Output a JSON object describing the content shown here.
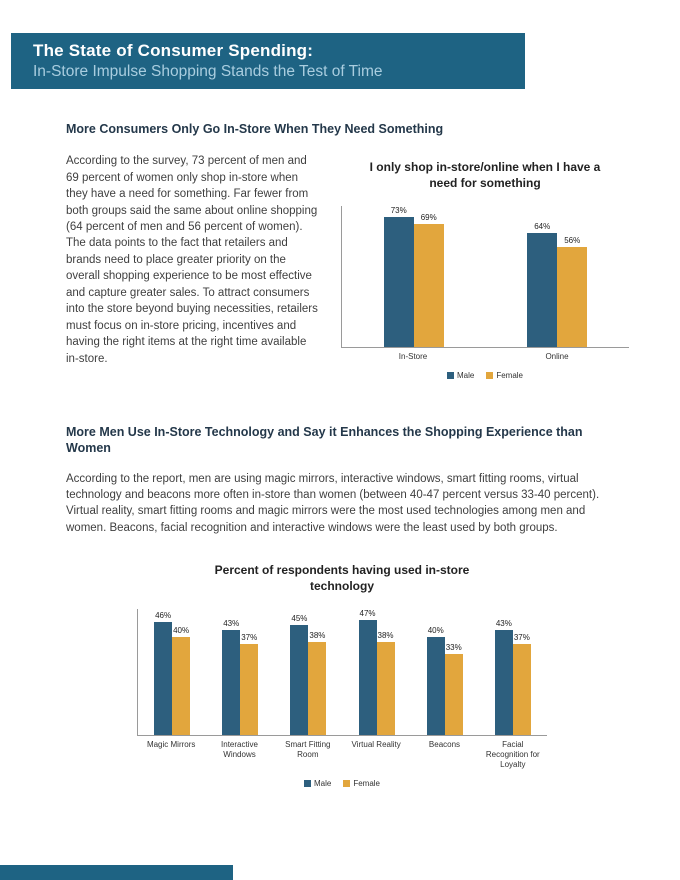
{
  "header": {
    "title": "The State of Consumer Spending:",
    "subtitle": "In-Store Impulse Shopping Stands the Test of Time"
  },
  "section1": {
    "heading": "More Consumers Only Go In-Store When They Need Something",
    "body": "According to the survey, 73 percent of men and 69 percent of women only shop in-store when they have a need for something. Far fewer from both groups said the same about online shopping (64 percent of men and 56 percent of women). The data points to the fact that retailers and brands need to place greater priority on the overall shopping experience to be most effective and capture greater sales. To attract consumers into the store beyond buying necessities, retailers must focus on in-store pricing, incentives and having the right items at the right time available in-store."
  },
  "section2": {
    "heading": "More Men Use In-Store Technology and Say it Enhances the Shopping Experience than Women",
    "body": "According to the report, men are using magic mirrors, interactive windows, smart fitting rooms, virtual technology and beacons more often in-store than women (between 40-47 percent versus 33-40 percent). Virtual reality, smart fitting rooms and magic mirrors were the most used technologies among men and women.  Beacons, facial recognition and interactive windows were the least used by both groups."
  },
  "colors": {
    "banner": "#1e6383",
    "male": "#2d5f7e",
    "female": "#e2a63d"
  },
  "chart_data": [
    {
      "type": "bar",
      "title": "I only shop in-store/online when I have a need for something",
      "categories": [
        "In-Store",
        "Online"
      ],
      "series": [
        {
          "name": "Male",
          "color": "#2d5f7e",
          "values": [
            73,
            64
          ]
        },
        {
          "name": "Female",
          "color": "#e2a63d",
          "values": [
            69,
            56
          ]
        }
      ],
      "value_suffix": "%",
      "ylim": [
        0,
        80
      ],
      "legend_position": "bottom"
    },
    {
      "type": "bar",
      "title": "Percent of respondents having used in-store technology",
      "categories": [
        "Magic Mirrors",
        "Interactive Windows",
        "Smart Fitting Room",
        "Virtual Reality",
        "Beacons",
        "Facial  Recognition for Loyalty"
      ],
      "series": [
        {
          "name": "Male",
          "color": "#2d5f7e",
          "values": [
            46,
            43,
            45,
            47,
            40,
            43
          ]
        },
        {
          "name": "Female",
          "color": "#e2a63d",
          "values": [
            40,
            37,
            38,
            38,
            33,
            37
          ]
        }
      ],
      "value_suffix": "%",
      "ylim": [
        0,
        52
      ],
      "legend_position": "bottom"
    }
  ]
}
